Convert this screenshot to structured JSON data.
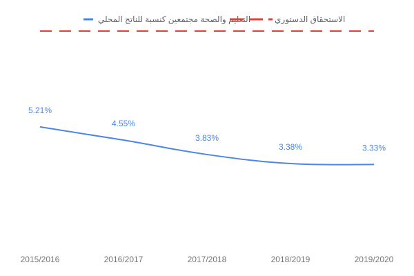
{
  "chart_data": {
    "type": "line",
    "title": "",
    "xlabel": "",
    "ylabel": "",
    "categories": [
      "2015/2016",
      "2016/2017",
      "2017/2018",
      "2018/2019",
      "2019/2020"
    ],
    "series": [
      {
        "name": "التعليم والصحة مجتمعين كنسبة للناتج المحلي",
        "color": "#4a86e8",
        "values": [
          5.21,
          4.55,
          3.83,
          3.38,
          3.33
        ],
        "labels": [
          "5.21%",
          "4.55%",
          "3.83%",
          "3.38%",
          "3.33%"
        ]
      },
      {
        "name": "الاستحقاق الدستوري",
        "color": "#db4437",
        "style": "dashed"
      }
    ],
    "ylim": [
      0,
      10
    ],
    "grid": false,
    "legend": "top"
  }
}
